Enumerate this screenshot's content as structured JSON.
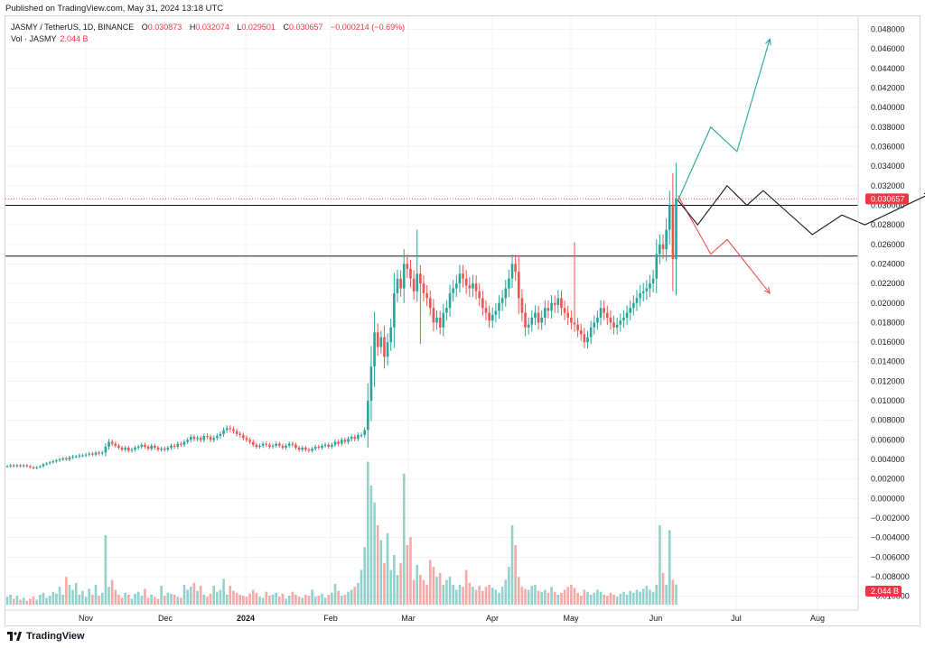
{
  "header": {
    "published": "Published on TradingView.com, May 31, 2024 13:18 UTC"
  },
  "legend": {
    "symbol": "JASMY / TetherUS, 1D, BINANCE",
    "open_label": "O",
    "open": "0.030873",
    "high_label": "H",
    "high": "0.032074",
    "low_label": "L",
    "low": "0.029501",
    "close_label": "C",
    "close": "0.030657",
    "change": "−0.000214 (−0.69%)",
    "vol_label": "Vol · JASMY",
    "vol": "2.044 B"
  },
  "price_badge": "0.030657",
  "volume_badge": "2.044 B",
  "footer": {
    "brand": "TradingView"
  },
  "colors": {
    "up": "#26a69a",
    "down": "#ef5350",
    "badge": "#f23645",
    "line": "#131722"
  },
  "chart_data": {
    "type": "candlestick",
    "symbol": "JASMY / TetherUS",
    "x_tick_labels": [
      "Nov",
      "Dec",
      "2024",
      "Feb",
      "Mar",
      "Apr",
      "May",
      "Jun",
      "Jul",
      "Aug"
    ],
    "y_tick_labels": [
      "0.048000",
      "0.046000",
      "0.044000",
      "0.042000",
      "0.040000",
      "0.038000",
      "0.036000",
      "0.034000",
      "0.032000",
      "0.030000",
      "0.028000",
      "0.026000",
      "0.024000",
      "0.022000",
      "0.020000",
      "0.018000",
      "0.016000",
      "0.014000",
      "0.012000",
      "0.010000",
      "0.008000",
      "0.006000",
      "0.004000",
      "0.002000",
      "0.000000",
      "−0.002000",
      "−0.004000",
      "−0.006000",
      "−0.008000",
      "−0.010000"
    ],
    "ylim": [
      -0.0104,
      0.0486
    ],
    "close_series": [
      0.0033,
      0.0034,
      0.0033,
      0.0034,
      0.0033,
      0.0034,
      0.0033,
      0.0032,
      0.0031,
      0.0032,
      0.0033,
      0.0035,
      0.0036,
      0.0037,
      0.0038,
      0.0039,
      0.004,
      0.0041,
      0.004,
      0.0042,
      0.0043,
      0.0043,
      0.0044,
      0.0044,
      0.0045,
      0.0046,
      0.0045,
      0.0047,
      0.0046,
      0.0047,
      0.0053,
      0.0058,
      0.0056,
      0.0054,
      0.0052,
      0.005,
      0.0052,
      0.0049,
      0.005,
      0.0052,
      0.0053,
      0.0055,
      0.0053,
      0.0051,
      0.0054,
      0.0052,
      0.005,
      0.0051,
      0.005,
      0.0052,
      0.0054,
      0.0053,
      0.0056,
      0.0055,
      0.0058,
      0.006,
      0.0063,
      0.0061,
      0.0062,
      0.006,
      0.0064,
      0.0063,
      0.006,
      0.0062,
      0.0064,
      0.0066,
      0.007,
      0.0072,
      0.0071,
      0.0069,
      0.0066,
      0.0065,
      0.0062,
      0.006,
      0.0058,
      0.0055,
      0.0053,
      0.0054,
      0.0056,
      0.0055,
      0.0053,
      0.0054,
      0.0056,
      0.0054,
      0.0052,
      0.0054,
      0.0056,
      0.0055,
      0.0052,
      0.005,
      0.0052,
      0.005,
      0.0049,
      0.0051,
      0.0053,
      0.0052,
      0.0054,
      0.0055,
      0.0053,
      0.0055,
      0.0058,
      0.0056,
      0.006,
      0.0058,
      0.0061,
      0.0063,
      0.0061,
      0.0065,
      0.0065,
      0.007,
      0.01,
      0.0135,
      0.017,
      0.0155,
      0.0165,
      0.0145,
      0.016,
      0.0175,
      0.021,
      0.0225,
      0.0215,
      0.024,
      0.0235,
      0.0225,
      0.0212,
      0.023,
      0.022,
      0.021,
      0.0205,
      0.0195,
      0.018,
      0.0185,
      0.0175,
      0.019,
      0.0195,
      0.021,
      0.0215,
      0.022,
      0.023,
      0.0225,
      0.0218,
      0.0215,
      0.022,
      0.0212,
      0.0205,
      0.0195,
      0.019,
      0.0182,
      0.0188,
      0.0192,
      0.02,
      0.0205,
      0.0215,
      0.0225,
      0.024,
      0.0232,
      0.0205,
      0.019,
      0.0175,
      0.0178,
      0.0185,
      0.019,
      0.018,
      0.0185,
      0.0195,
      0.0192,
      0.02,
      0.0198,
      0.0205,
      0.0195,
      0.019,
      0.0185,
      0.018,
      0.0178,
      0.0172,
      0.0168,
      0.016,
      0.0165,
      0.0175,
      0.018,
      0.0185,
      0.0195,
      0.019,
      0.0185,
      0.018,
      0.0175,
      0.0178,
      0.0182,
      0.0185,
      0.019,
      0.0195,
      0.02,
      0.0205,
      0.021,
      0.0212,
      0.0215,
      0.022,
      0.0225,
      0.025,
      0.026,
      0.0255,
      0.0275,
      0.03,
      0.0245,
      0.030657
    ],
    "volume_series": [
      0.8,
      1.0,
      0.6,
      0.9,
      0.5,
      0.7,
      0.4,
      0.6,
      0.8,
      0.5,
      1.0,
      1.2,
      0.7,
      0.9,
      1.3,
      1.1,
      1.8,
      1.0,
      2.8,
      2.0,
      1.5,
      2.2,
      1.0,
      1.4,
      0.8,
      1.6,
      1.0,
      2.0,
      0.9,
      1.2,
      7.0,
      1.8,
      2.5,
      1.5,
      1.0,
      0.7,
      1.2,
      1.0,
      0.6,
      1.1,
      1.3,
      0.9,
      1.6,
      0.7,
      1.0,
      0.8,
      0.6,
      1.9,
      0.9,
      1.2,
      1.1,
      1.0,
      0.8,
      0.7,
      2.0,
      1.5,
      1.8,
      2.2,
      1.4,
      1.9,
      1.0,
      0.8,
      1.1,
      1.9,
      1.3,
      1.5,
      2.6,
      1.0,
      1.9,
      1.4,
      1.2,
      1.0,
      0.9,
      0.8,
      1.1,
      1.5,
      1.2,
      0.8,
      0.7,
      1.3,
      0.9,
      1.0,
      1.2,
      0.8,
      1.1,
      0.6,
      0.9,
      1.3,
      1.0,
      0.8,
      0.7,
      1.0,
      0.9,
      1.5,
      0.8,
      0.9,
      1.1,
      0.7,
      1.0,
      1.2,
      2.1,
      1.4,
      0.9,
      1.0,
      1.3,
      1.5,
      1.8,
      2.2,
      3.5,
      5.8,
      14.4,
      12.0,
      10.3,
      8.0,
      6.5,
      4.2,
      7.2,
      3.5,
      5.0,
      3.0,
      4.2,
      13.2,
      6.0,
      6.8,
      2.5,
      4.0,
      3.0,
      2.5,
      2.0,
      4.5,
      3.8,
      2.8,
      3.2,
      2.0,
      2.5,
      2.8,
      2.0,
      1.5,
      2.0,
      1.8,
      3.5,
      2.2,
      1.8,
      1.5,
      1.9,
      1.4,
      1.8,
      2.0,
      1.7,
      1.5,
      1.2,
      1.8,
      2.5,
      3.8,
      8.0,
      6.0,
      2.8,
      1.8,
      1.6,
      1.5,
      1.9,
      2.0,
      1.4,
      1.3,
      1.5,
      1.2,
      1.8,
      1.3,
      1.0,
      1.2,
      1.5,
      1.8,
      2.0,
      1.7,
      1.2,
      0.9,
      1.5,
      1.3,
      1.0,
      1.2,
      1.5,
      1.3,
      1.0,
      0.9,
      1.2,
      1.0,
      0.8,
      1.1,
      1.3,
      1.0,
      1.4,
      1.2,
      1.5,
      1.3,
      1.6,
      1.9,
      1.5,
      1.3,
      2.0,
      8.0,
      3.2,
      2.0,
      7.5,
      2.5,
      2.044
    ],
    "horizontal_levels": [
      0.03,
      0.0248
    ],
    "current_price_line": 0.030657,
    "projection_up": [
      [
        0.0305,
        0
      ],
      [
        0.038,
        10
      ],
      [
        0.0355,
        18
      ],
      [
        0.047,
        28
      ]
    ],
    "projection_sideways": [
      [
        0.0305,
        0
      ],
      [
        0.028,
        6
      ],
      [
        0.032,
        15
      ],
      [
        0.03,
        21
      ],
      [
        0.0315,
        26
      ],
      [
        0.027,
        41
      ],
      [
        0.029,
        50
      ],
      [
        0.028,
        57
      ],
      [
        0.0312,
        77
      ]
    ],
    "projection_down": [
      [
        0.031,
        0
      ],
      [
        0.025,
        10
      ],
      [
        0.0265,
        15
      ],
      [
        0.021,
        28
      ]
    ]
  }
}
